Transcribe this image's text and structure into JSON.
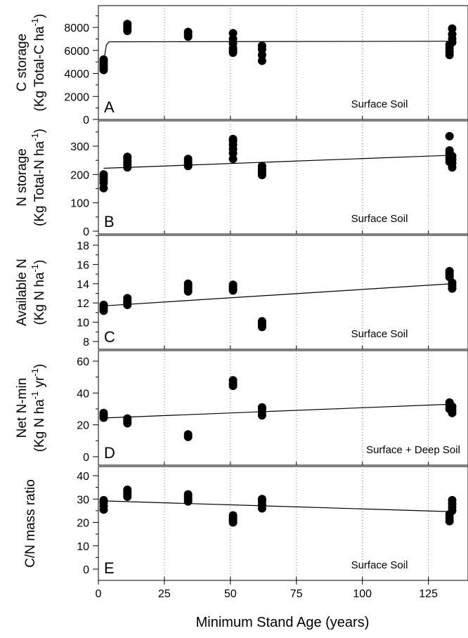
{
  "figure": {
    "xlabel": "Minimum Stand Age (years)"
  },
  "chart_data": [
    {
      "type": "scatter",
      "panel_letter": "A",
      "annotation": "Surface Soil",
      "ylabel_lines": [
        "C storage",
        "(Kg Total-C ha",
        "-1",
        ")"
      ],
      "xlim": [
        0,
        140
      ],
      "ylim": [
        0,
        9000
      ],
      "yticks": [
        0,
        2000,
        4000,
        6000,
        8000
      ],
      "xticks": [
        0,
        25,
        50,
        75,
        100,
        125
      ],
      "grid": "vertical dotted",
      "points": [
        [
          2,
          4300
        ],
        [
          2,
          4500
        ],
        [
          2,
          4700
        ],
        [
          2,
          4900
        ],
        [
          2,
          5100
        ],
        [
          2,
          5200
        ],
        [
          11,
          7700
        ],
        [
          11,
          7900
        ],
        [
          11,
          8100
        ],
        [
          11,
          8300
        ],
        [
          34,
          7200
        ],
        [
          34,
          7400
        ],
        [
          34,
          7600
        ],
        [
          51,
          5800
        ],
        [
          51,
          6000
        ],
        [
          51,
          6200
        ],
        [
          51,
          6600
        ],
        [
          51,
          7000
        ],
        [
          51,
          7500
        ],
        [
          62,
          5100
        ],
        [
          62,
          5600
        ],
        [
          62,
          6100
        ],
        [
          62,
          6400
        ],
        [
          133,
          5600
        ],
        [
          133,
          5900
        ],
        [
          133,
          6200
        ],
        [
          133,
          6500
        ],
        [
          134,
          6700
        ],
        [
          134,
          7000
        ],
        [
          134,
          7400
        ],
        [
          134,
          7900
        ]
      ],
      "fit": [
        [
          2,
          5000
        ],
        [
          3,
          6450
        ],
        [
          4,
          6750
        ],
        [
          134,
          6800
        ]
      ]
    },
    {
      "type": "scatter",
      "panel_letter": "B",
      "annotation": "Surface Soil",
      "ylabel_lines": [
        "N storage",
        "(Kg Total-N ha",
        "-1",
        ")"
      ],
      "xlim": [
        0,
        140
      ],
      "ylim": [
        0,
        370
      ],
      "yticks": [
        0,
        100,
        200,
        300
      ],
      "xticks": [
        0,
        25,
        50,
        75,
        100,
        125
      ],
      "grid": "vertical dotted",
      "points": [
        [
          2,
          152
        ],
        [
          2,
          170
        ],
        [
          2,
          182
        ],
        [
          2,
          192
        ],
        [
          2,
          200
        ],
        [
          11,
          225
        ],
        [
          11,
          235
        ],
        [
          11,
          245
        ],
        [
          11,
          255
        ],
        [
          11,
          262
        ],
        [
          34,
          230
        ],
        [
          34,
          238
        ],
        [
          34,
          245
        ],
        [
          34,
          255
        ],
        [
          51,
          255
        ],
        [
          51,
          275
        ],
        [
          51,
          290
        ],
        [
          51,
          305
        ],
        [
          51,
          318
        ],
        [
          51,
          325
        ],
        [
          62,
          198
        ],
        [
          62,
          205
        ],
        [
          62,
          212
        ],
        [
          62,
          220
        ],
        [
          62,
          230
        ],
        [
          133,
          245
        ],
        [
          133,
          255
        ],
        [
          133,
          265
        ],
        [
          133,
          275
        ],
        [
          133,
          285
        ],
        [
          133,
          335
        ],
        [
          134,
          225
        ],
        [
          134,
          240
        ],
        [
          134,
          252
        ],
        [
          134,
          265
        ]
      ],
      "fit": [
        [
          2,
          222
        ],
        [
          134,
          268
        ]
      ]
    },
    {
      "type": "scatter",
      "panel_letter": "C",
      "annotation": "Surface Soil",
      "ylabel_lines": [
        "Available N",
        "(Kg N ha",
        "-1",
        ")"
      ],
      "xlim": [
        0,
        140
      ],
      "ylim": [
        7,
        19
      ],
      "yticks": [
        8,
        10,
        12,
        14,
        16,
        18
      ],
      "xticks": [
        0,
        25,
        50,
        75,
        100,
        125
      ],
      "grid": "vertical dotted",
      "points": [
        [
          2,
          11.2
        ],
        [
          2,
          11.4
        ],
        [
          2,
          11.6
        ],
        [
          2,
          11.8
        ],
        [
          11,
          11.8
        ],
        [
          11,
          12.0
        ],
        [
          11,
          12.2
        ],
        [
          11,
          12.5
        ],
        [
          34,
          13.2
        ],
        [
          34,
          13.5
        ],
        [
          34,
          13.7
        ],
        [
          34,
          14.0
        ],
        [
          51,
          13.3
        ],
        [
          51,
          13.5
        ],
        [
          51,
          13.7
        ],
        [
          51,
          13.9
        ],
        [
          62,
          9.5
        ],
        [
          62,
          9.7
        ],
        [
          62,
          9.9
        ],
        [
          62,
          10.1
        ],
        [
          133,
          14.7
        ],
        [
          133,
          14.9
        ],
        [
          133,
          15.1
        ],
        [
          133,
          15.3
        ],
        [
          134,
          13.5
        ],
        [
          134,
          13.8
        ],
        [
          134,
          14.1
        ]
      ],
      "fit": [
        [
          2,
          11.7
        ],
        [
          134,
          14.0
        ]
      ]
    },
    {
      "type": "scatter",
      "panel_letter": "D",
      "annotation": "Surface + Deep Soil",
      "ylabel_lines": [
        "Net N-min",
        "(Kg N ha",
        "-1",
        " yr",
        "-1",
        ")"
      ],
      "xlim": [
        0,
        140
      ],
      "ylim": [
        -5,
        65
      ],
      "yticks": [
        0,
        20,
        40,
        60
      ],
      "xticks": [
        0,
        25,
        50,
        75,
        100,
        125
      ],
      "grid": "vertical dotted",
      "points": [
        [
          2,
          24.5
        ],
        [
          2,
          26
        ],
        [
          2,
          27.5
        ],
        [
          11,
          21
        ],
        [
          11,
          22.5
        ],
        [
          11,
          24
        ],
        [
          34,
          12.5
        ],
        [
          34,
          14
        ],
        [
          51,
          44.5
        ],
        [
          51,
          46
        ],
        [
          51,
          48
        ],
        [
          62,
          26
        ],
        [
          62,
          28
        ],
        [
          62,
          30
        ],
        [
          62,
          31
        ],
        [
          133,
          30
        ],
        [
          133,
          32
        ],
        [
          133,
          34
        ],
        [
          134,
          27.5
        ],
        [
          134,
          29.5
        ],
        [
          134,
          31.5
        ]
      ],
      "fit": [
        [
          2,
          24.3
        ],
        [
          134,
          33.0
        ]
      ]
    },
    {
      "type": "scatter",
      "panel_letter": "E",
      "annotation": "Surface Soil",
      "ylabel_lines": [
        "C/N mass ratio"
      ],
      "xlim": [
        0,
        140
      ],
      "ylim": [
        -5,
        45
      ],
      "yticks": [
        0,
        10,
        20,
        30,
        40
      ],
      "xticks": [
        0,
        25,
        50,
        75,
        100,
        125
      ],
      "grid": "vertical dotted",
      "points": [
        [
          2,
          25.5
        ],
        [
          2,
          27
        ],
        [
          2,
          28.5
        ],
        [
          2,
          29.5
        ],
        [
          11,
          31
        ],
        [
          11,
          32
        ],
        [
          11,
          33
        ],
        [
          11,
          34
        ],
        [
          34,
          29
        ],
        [
          34,
          30
        ],
        [
          34,
          31
        ],
        [
          34,
          32
        ],
        [
          51,
          20
        ],
        [
          51,
          21
        ],
        [
          51,
          22
        ],
        [
          51,
          23
        ],
        [
          62,
          26
        ],
        [
          62,
          27.5
        ],
        [
          62,
          29
        ],
        [
          62,
          30
        ],
        [
          133,
          20.5
        ],
        [
          133,
          22
        ],
        [
          133,
          23.5
        ],
        [
          134,
          25
        ],
        [
          134,
          26.5
        ],
        [
          134,
          28
        ],
        [
          134,
          29.5
        ]
      ],
      "fit": [
        [
          2,
          29.2
        ],
        [
          134,
          24.6
        ]
      ]
    }
  ]
}
